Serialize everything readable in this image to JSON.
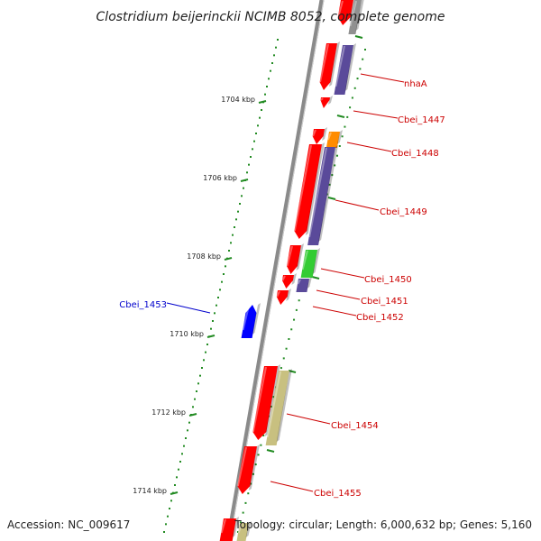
{
  "title": "Clostridium beijerinckii NCIMB 8052, complete genome",
  "footer": {
    "accession": "Accession: NC_009617",
    "topology": "Topology: circular; Length: 6,000,632 bp; Genes: 5,160"
  },
  "colors": {
    "backbone": "#8a8a8a",
    "forward_gene": "#ff0000",
    "reverse_gene": "#5a4a9a",
    "orange_gene": "#ff8c00",
    "green_gene": "#33cc33",
    "khaki_gene": "#c8c080",
    "blue_gene": "#0000ff",
    "gray_gene": "#909090",
    "tick": "#228b22",
    "label_red": "#cc0000",
    "label_blue": "#0000cc"
  },
  "ruler": {
    "kbp_labels": [
      "1704 kbp",
      "1706 kbp",
      "1708 kbp",
      "1710 kbp",
      "1712 kbp",
      "1714 kbp"
    ]
  },
  "gene_labels": [
    {
      "text": "nhaA",
      "color": "label_red"
    },
    {
      "text": "Cbei_1447",
      "color": "label_red"
    },
    {
      "text": "Cbei_1448",
      "color": "label_red"
    },
    {
      "text": "Cbei_1449",
      "color": "label_red"
    },
    {
      "text": "Cbei_1450",
      "color": "label_red"
    },
    {
      "text": "Cbei_1451",
      "color": "label_red"
    },
    {
      "text": "Cbei_1452",
      "color": "label_red"
    },
    {
      "text": "Cbei_1453",
      "color": "label_blue"
    },
    {
      "text": "Cbei_1454",
      "color": "label_red"
    },
    {
      "text": "Cbei_1455",
      "color": "label_red"
    }
  ]
}
